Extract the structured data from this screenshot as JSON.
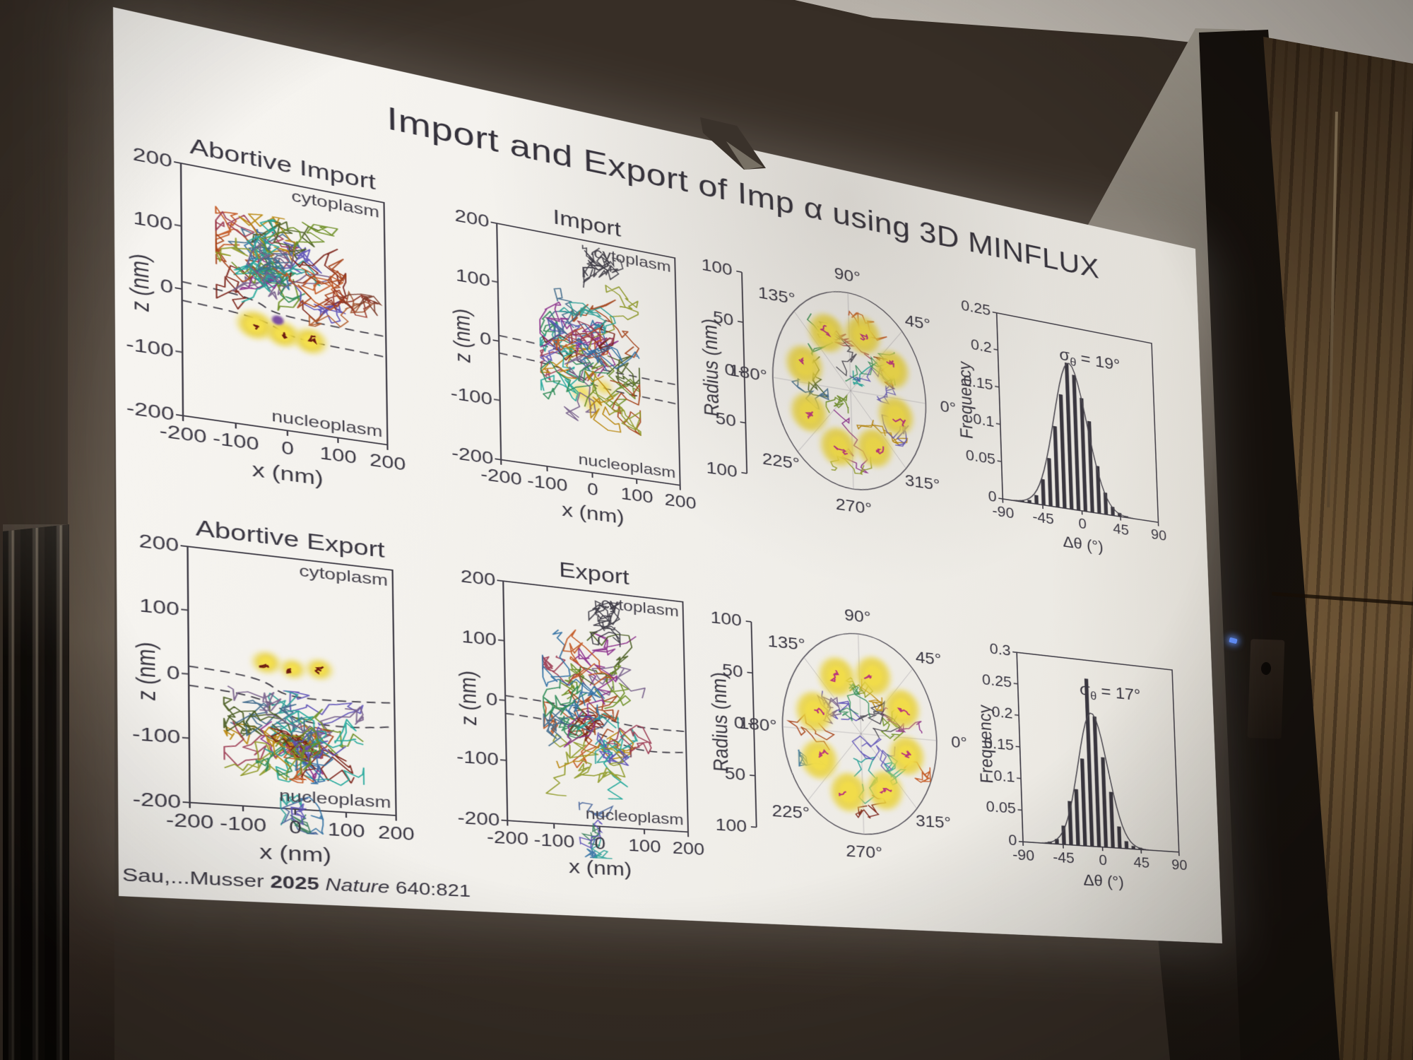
{
  "slide": {
    "title": "Import and Export of Imp α using 3D MINFLUX"
  },
  "citation": {
    "prefix": "Sau,...Musser ",
    "year": "2025",
    "journal": " Nature ",
    "ref": "640:821"
  },
  "zx_plots": [
    {
      "id": "abortive-import",
      "title": "Abortive Import",
      "xlabel": "x (nm)",
      "ylabel": "z (nm)",
      "xticks": [
        "-200",
        "-100",
        "0",
        "100",
        "200"
      ],
      "yticks": [
        "200",
        "100",
        "0",
        "-100",
        "-200"
      ],
      "upper_region": "cytoplasm",
      "lower_region": "nucleoplasm"
    },
    {
      "id": "import",
      "title": "Import",
      "xlabel": "x (nm)",
      "ylabel": "z (nm)",
      "xticks": [
        "-200",
        "-100",
        "0",
        "100",
        "200"
      ],
      "yticks": [
        "200",
        "100",
        "0",
        "-100",
        "-200"
      ],
      "upper_region": "cytoplasm",
      "lower_region": "nucleoplasm"
    },
    {
      "id": "abortive-export",
      "title": "Abortive Export",
      "xlabel": "x (nm)",
      "ylabel": "z (nm)",
      "xticks": [
        "-200",
        "-100",
        "0",
        "100",
        "200"
      ],
      "yticks": [
        "200",
        "100",
        "0",
        "-100",
        "-200"
      ],
      "upper_region": "cytoplasm",
      "lower_region": "nucleoplasm"
    },
    {
      "id": "export",
      "title": "Export",
      "xlabel": "x (nm)",
      "ylabel": "z (nm)",
      "xticks": [
        "-200",
        "-100",
        "0",
        "100",
        "200"
      ],
      "yticks": [
        "200",
        "100",
        "0",
        "-100",
        "-200"
      ],
      "upper_region": "cytoplasm",
      "lower_region": "nucleoplasm"
    }
  ],
  "polar_plots": [
    {
      "id": "import-polar",
      "radius_label": "Radius (nm)",
      "radius_ticks": [
        "100",
        "50",
        "0",
        "50",
        "100"
      ],
      "angle_labels": [
        {
          "label": "90°",
          "deg": 90
        },
        {
          "label": "45°",
          "deg": 45
        },
        {
          "label": "0°",
          "deg": 0
        },
        {
          "label": "315°",
          "deg": 315
        },
        {
          "label": "270°",
          "deg": 270
        },
        {
          "label": "225°",
          "deg": 225
        },
        {
          "label": "180°",
          "deg": 180
        },
        {
          "label": "135°",
          "deg": 135
        }
      ]
    },
    {
      "id": "export-polar",
      "radius_label": "Radius (nm)",
      "radius_ticks": [
        "100",
        "50",
        "0",
        "50",
        "100"
      ],
      "angle_labels": [
        {
          "label": "90°",
          "deg": 90
        },
        {
          "label": "45°",
          "deg": 45
        },
        {
          "label": "0°",
          "deg": 0
        },
        {
          "label": "315°",
          "deg": 315
        },
        {
          "label": "270°",
          "deg": 270
        },
        {
          "label": "225°",
          "deg": 225
        },
        {
          "label": "180°",
          "deg": 180
        },
        {
          "label": "135°",
          "deg": 135
        }
      ]
    }
  ],
  "histograms": [
    {
      "id": "import-dtheta-hist",
      "ylabel": "Frequency",
      "xlabel": "Δθ (°)",
      "yticks": [
        "0.25",
        "0.2",
        "0.15",
        "0.1",
        "0.05",
        "0"
      ],
      "xticks": [
        "-90",
        "-45",
        "0",
        "45",
        "90"
      ],
      "ymax": 0.25,
      "sigma": {
        "symbol": "σ",
        "sub": "θ",
        "rest": " = 19°"
      }
    },
    {
      "id": "export-dtheta-hist",
      "ylabel": "Frequency",
      "xlabel": "Δθ (°)",
      "yticks": [
        "0.3",
        "0.25",
        "0.2",
        "0.15",
        "0.1",
        "0.05",
        "0"
      ],
      "xticks": [
        "-90",
        "-45",
        "0",
        "45",
        "90"
      ],
      "ymax": 0.3,
      "sigma": {
        "symbol": "σ",
        "sub": "θ",
        "rest": " = 17°"
      }
    }
  ],
  "chart_data": [
    {
      "type": "scatter",
      "id": "abortive-import",
      "title": "Abortive Import",
      "xlabel": "x (nm)",
      "ylabel": "z (nm)",
      "xlim": [
        -200,
        200
      ],
      "ylim": [
        -200,
        200
      ],
      "regions": {
        "top": "cytoplasm",
        "bottom": "nucleoplasm"
      },
      "nuclear_envelope_z_nm": [
        10,
        -25
      ],
      "trajectories": {
        "count": 30,
        "x_nm": [
          -130,
          110
        ],
        "z_nm": [
          -40,
          150
        ],
        "note": "multicolored single-molecule tracks stay on cytoplasmic side of envelope"
      },
      "npc_blobs": {
        "count": 3,
        "z_nm": -45,
        "color": "#e8d23a"
      }
    },
    {
      "type": "scatter",
      "id": "import",
      "title": "Import",
      "xlabel": "x (nm)",
      "ylabel": "z (nm)",
      "xlim": [
        -200,
        200
      ],
      "ylim": [
        -200,
        200
      ],
      "regions": {
        "top": "cytoplasm",
        "bottom": "nucleoplasm"
      },
      "nuclear_envelope_z_nm": [
        10,
        -25
      ],
      "trajectories": {
        "count": 32,
        "x_nm": [
          -110,
          100
        ],
        "z_nm": [
          -170,
          150
        ],
        "note": "tracks cross the nuclear envelope from cytoplasm to nucleoplasm"
      }
    },
    {
      "type": "scatter",
      "id": "abortive-export",
      "title": "Abortive Export",
      "xlabel": "x (nm)",
      "ylabel": "z (nm)",
      "xlim": [
        -200,
        200
      ],
      "ylim": [
        -200,
        200
      ],
      "regions": {
        "top": "cytoplasm",
        "bottom": "nucleoplasm"
      },
      "nuclear_envelope_z_nm": [
        10,
        -25
      ],
      "trajectories": {
        "count": 30,
        "x_nm": [
          -140,
          120
        ],
        "z_nm": [
          -160,
          -10
        ],
        "note": "tracks stay on nucleoplasmic side of envelope"
      },
      "npc_blobs": {
        "count": 3,
        "z_nm": 15,
        "color": "#e8d23a"
      }
    },
    {
      "type": "scatter",
      "id": "export",
      "title": "Export",
      "xlabel": "x (nm)",
      "ylabel": "z (nm)",
      "xlim": [
        -200,
        200
      ],
      "ylim": [
        -200,
        200
      ],
      "regions": {
        "top": "cytoplasm",
        "bottom": "nucleoplasm"
      },
      "nuclear_envelope_z_nm": [
        10,
        -25
      ],
      "trajectories": {
        "count": 32,
        "x_nm": [
          -120,
          90
        ],
        "z_nm": [
          -170,
          160
        ],
        "note": "tracks cross the envelope from nucleoplasm to cytoplasm"
      }
    },
    {
      "type": "polar",
      "id": "import-polar",
      "radius_label": "Radius (nm)",
      "radius_ticks_nm": [
        100,
        50,
        0,
        50,
        100
      ],
      "angle_ticks_deg": [
        0,
        45,
        90,
        135,
        180,
        225,
        270,
        315
      ],
      "npc_blobs": {
        "count": 8,
        "ring_radius_nm": 60,
        "color": "#e8d23a",
        "core_color": "#b5247f"
      },
      "note": "axial view: eight-fold symmetric NPC scaffold ring with overlaid trajectories"
    },
    {
      "type": "polar",
      "id": "export-polar",
      "radius_label": "Radius (nm)",
      "radius_ticks_nm": [
        100,
        50,
        0,
        50,
        100
      ],
      "angle_ticks_deg": [
        0,
        45,
        90,
        135,
        180,
        225,
        270,
        315
      ],
      "npc_blobs": {
        "count": 8,
        "ring_radius_nm": 60,
        "color": "#e8d23a",
        "core_color": "#b5247f"
      },
      "note": "axial view: eight-fold symmetric NPC scaffold ring with overlaid trajectories"
    },
    {
      "type": "bar",
      "id": "import-dtheta-hist",
      "xlabel": "Δθ (°)",
      "ylabel": "Frequency",
      "xlim": [
        -90,
        90
      ],
      "ylim": [
        0,
        0.25
      ],
      "bin_centers_deg": [
        -68,
        -60,
        -52,
        -44,
        -36,
        -28,
        -20,
        -12,
        -4,
        4,
        12,
        20,
        28,
        36,
        44,
        52
      ],
      "values": [
        0.002,
        0.004,
        0.012,
        0.035,
        0.065,
        0.11,
        0.155,
        0.2,
        0.185,
        0.155,
        0.125,
        0.065,
        0.03,
        0.012,
        0.005,
        0.002
      ],
      "fit": {
        "type": "gaussian",
        "sigma_deg": 19,
        "mean_deg": -10,
        "peak": 0.2
      },
      "annotation": "σθ = 19°"
    },
    {
      "type": "bar",
      "id": "export-dtheta-hist",
      "xlabel": "Δθ (°)",
      "ylabel": "Frequency",
      "xlim": [
        -90,
        90
      ],
      "ylim": [
        0,
        0.3
      ],
      "bin_centers_deg": [
        -60,
        -52,
        -44,
        -36,
        -28,
        -20,
        -12,
        -4,
        4,
        12,
        20,
        28,
        36,
        44
      ],
      "values": [
        0.003,
        0.008,
        0.03,
        0.07,
        0.09,
        0.14,
        0.27,
        0.21,
        0.145,
        0.09,
        0.035,
        0.012,
        0.005,
        0.003
      ],
      "fit": {
        "type": "gaussian",
        "sigma_deg": 17,
        "mean_deg": -8,
        "peak": 0.215
      },
      "annotation": "σθ = 17°"
    }
  ],
  "colors": {
    "slide_ink": "#43404a",
    "npc_yellow": "#e8d23a",
    "magenta_core": "#b5247f",
    "screen_white": "#f3f1ec",
    "wood_brown": "#6a5134",
    "frame_black": "#16110d",
    "led_blue": "#5b8cff"
  }
}
